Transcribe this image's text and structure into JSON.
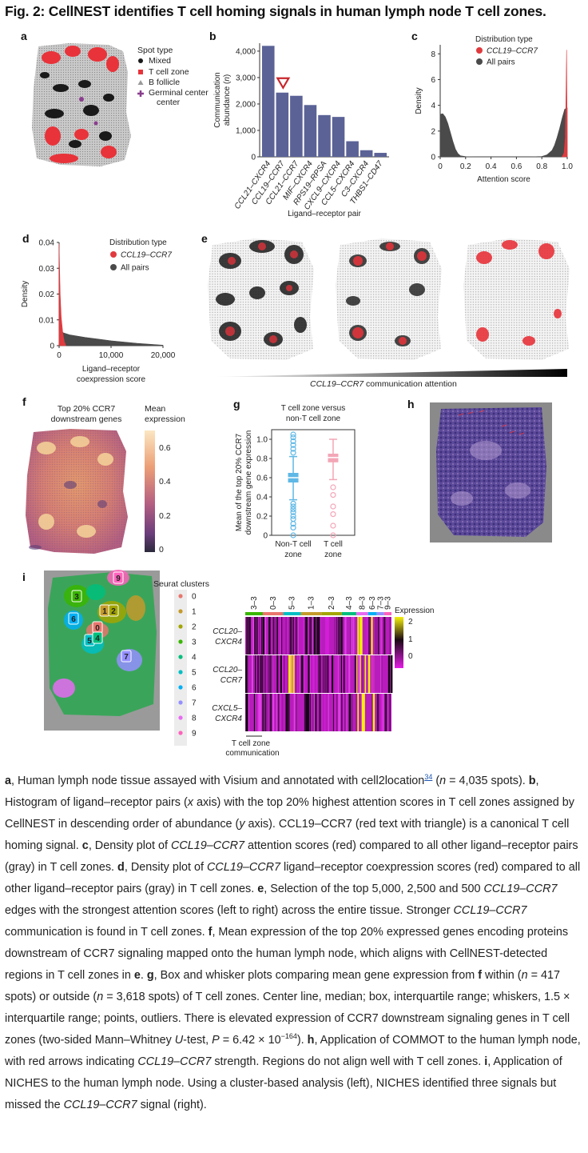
{
  "figure": {
    "title": "Fig. 2: CellNEST identifies T cell homing signals in human lymph node T cell zones."
  },
  "panels": {
    "a": {
      "label": "a",
      "legend_title": "Spot type",
      "legend": [
        "Mixed",
        "T cell zone",
        "B follicle",
        "Germinal center"
      ],
      "colors": {
        "mixed": "#1a1a1a",
        "tcell": "#e8333a",
        "bfollicle": "#9a9a9a",
        "germinal": "#8a3e8e"
      }
    },
    "b": {
      "label": "b"
    },
    "c": {
      "label": "c"
    },
    "d": {
      "label": "d"
    },
    "e": {
      "label": "e",
      "gradient_label_italic": "CCL19–CCR7",
      "gradient_label_rest": " communication attention"
    },
    "f": {
      "label": "f",
      "title_line1": "Top 20% CCR7",
      "title_line2": "downstream genes",
      "colorbar_title_line1": "Mean",
      "colorbar_title_line2": "expression",
      "colorbar_ticks": [
        "0.6",
        "0.4",
        "0.2",
        "0"
      ]
    },
    "g": {
      "label": "g"
    },
    "h": {
      "label": "h"
    },
    "i": {
      "label": "i",
      "clusters_title": "Seurat clusters",
      "clusters": [
        "0",
        "1",
        "2",
        "3",
        "4",
        "5",
        "6",
        "7",
        "8",
        "9"
      ],
      "cluster_colors": [
        "#e8766d",
        "#c49a2b",
        "#a3a500",
        "#39b600",
        "#00bf7d",
        "#00bfc4",
        "#00b0f6",
        "#9590ff",
        "#e76bf3",
        "#ff62bc"
      ],
      "map_labels": [
        {
          "id": "9",
          "x": 148,
          "y": 722
        },
        {
          "id": "3",
          "x": 96,
          "y": 745
        },
        {
          "id": "1",
          "x": 131,
          "y": 763
        },
        {
          "id": "2",
          "x": 142,
          "y": 763
        },
        {
          "id": "6",
          "x": 92,
          "y": 773
        },
        {
          "id": "0",
          "x": 122,
          "y": 784
        },
        {
          "id": "5",
          "x": 112,
          "y": 800
        },
        {
          "id": "4",
          "x": 122,
          "y": 797
        },
        {
          "id": "7",
          "x": 158,
          "y": 820
        }
      ],
      "heatmap_top_labels": [
        "3–3",
        "0–3",
        "5–3",
        "1–3",
        "2–3",
        "4–3",
        "8–3",
        "6–3",
        "7–3",
        "9–3"
      ],
      "heatmap_rows": [
        {
          "line1": "CCL20–",
          "line2": "CXCR4"
        },
        {
          "line1": "CCL20–",
          "line2": "CCR7"
        },
        {
          "line1": "CXCL5–",
          "line2": "CXCR4"
        }
      ],
      "expression_title": "Expression",
      "expression_ticks": [
        "2",
        "1",
        "0"
      ],
      "bottom_line1": "T cell zone",
      "bottom_line2": "communication"
    }
  },
  "chart_data": [
    {
      "panel": "b",
      "type": "bar",
      "categories": [
        "CCL21–CXCR4",
        "CCL19–CCR7",
        "CCL21–CCR7",
        "MIF–CXCR4",
        "RPS19–RPSA",
        "CXCL9–CXCR4",
        "CCL5–CXCR4",
        "C3–CXCR4",
        "THBS1–CD47"
      ],
      "values": [
        4200,
        2430,
        2310,
        1960,
        1580,
        1510,
        590,
        250,
        150
      ],
      "highlight": "CCL19–CCR7",
      "highlight_color": "#c8262b",
      "bar_color": "#5a6296",
      "ylabel_line1": "Communication",
      "ylabel_line2_a": "abundance (",
      "ylabel_line2_b": "n",
      "ylabel_line2_c": ")",
      "xlabel": "Ligand–receptor pair",
      "ylim": [
        0,
        4300
      ],
      "yticks": [
        "0",
        "1,000",
        "2,000",
        "3,000",
        "4,000"
      ],
      "ytick_values": [
        0,
        1000,
        2000,
        3000,
        4000
      ]
    },
    {
      "panel": "c",
      "type": "area",
      "xlabel": "Attention score",
      "ylabel": "Density",
      "xlim": [
        0,
        1
      ],
      "ylim": [
        0,
        8.7
      ],
      "xticks": [
        "0",
        "0.2",
        "0.4",
        "0.6",
        "0.8",
        "1.0"
      ],
      "xtick_values": [
        0,
        0.2,
        0.4,
        0.6,
        0.8,
        1.0
      ],
      "yticks": [
        "0",
        "2",
        "4",
        "6",
        "8"
      ],
      "ytick_values": [
        0,
        2,
        4,
        6,
        8
      ],
      "legend_title": "Distribution type",
      "legend": [
        "CCL19–CCR7",
        "All pairs"
      ],
      "series": [
        {
          "name": "All pairs",
          "color": "#4a4a4a",
          "x": [
            0,
            0.02,
            0.04,
            0.06,
            0.08,
            0.1,
            0.12,
            0.14,
            0.16,
            0.2,
            0.3,
            0.5,
            0.7,
            0.8,
            0.84,
            0.88,
            0.9,
            0.92,
            0.94,
            0.96,
            0.98,
            1.0
          ],
          "y": [
            3.3,
            3.35,
            3.1,
            2.6,
            1.9,
            1.2,
            0.6,
            0.25,
            0.08,
            0.02,
            0,
            0,
            0,
            0.03,
            0.15,
            0.5,
            0.9,
            1.5,
            2.2,
            3.0,
            3.7,
            3.8
          ]
        },
        {
          "name": "CCL19–CCR7",
          "color": "#e03a3e",
          "x": [
            0.96,
            0.975,
            0.985,
            0.99,
            0.995,
            1.0
          ],
          "y": [
            0,
            0.3,
            1.5,
            4.5,
            8.3,
            0
          ]
        }
      ]
    },
    {
      "panel": "d",
      "type": "area",
      "xlabel_line1": "Ligand–receptor",
      "xlabel_line2": "coexpression score",
      "ylabel": "Density",
      "xlim": [
        0,
        20000
      ],
      "ylim": [
        0,
        0.04
      ],
      "xticks": [
        "0",
        "10,000",
        "20,000"
      ],
      "xtick_values": [
        0,
        10000,
        20000
      ],
      "yticks": [
        "0",
        "0.01",
        "0.02",
        "0.03",
        "0.04"
      ],
      "ytick_values": [
        0,
        0.01,
        0.02,
        0.03,
        0.04
      ],
      "legend_title": "Distribution type",
      "legend": [
        "CCL19–CCR7",
        "All pairs"
      ],
      "series": [
        {
          "name": "All pairs",
          "color": "#4a4a4a",
          "x": [
            0,
            300,
            800,
            2000,
            5000,
            10000,
            15000,
            20000
          ],
          "y": [
            0.0055,
            0.0058,
            0.005,
            0.0042,
            0.0032,
            0.0019,
            0.0009,
            0.0002
          ]
        },
        {
          "name": "CCL19–CCR7",
          "color": "#e03a3e",
          "x": [
            0,
            60,
            200,
            400,
            700,
            1000,
            1300
          ],
          "y": [
            0.0395,
            0.033,
            0.02,
            0.011,
            0.005,
            0.0015,
            0
          ]
        }
      ]
    },
    {
      "panel": "g",
      "type": "box",
      "title_line1": "T cell zone versus",
      "title_line2": "non-T cell zone",
      "ylabel_line1": "Mean of the top 20% CCR7",
      "ylabel_line2": "downstream gene expression",
      "categories_line1": [
        "Non-T cell",
        "T cell"
      ],
      "categories_line2": [
        "zone",
        "zone"
      ],
      "ylim": [
        0,
        1.1
      ],
      "yticks": [
        "0",
        "0.2",
        "0.4",
        "0.6",
        "0.8",
        "1.0"
      ],
      "ytick_values": [
        0,
        0.2,
        0.4,
        0.6,
        0.8,
        1.0
      ],
      "boxes": [
        {
          "name": "Non-T cell zone",
          "color": "#5fb8e6",
          "min": 0.37,
          "q1": 0.55,
          "median": 0.6,
          "q3": 0.65,
          "max": 0.82,
          "outliers": [
            0.0,
            0.08,
            0.12,
            0.17,
            0.2,
            0.24,
            0.27,
            0.3,
            0.33,
            0.86,
            0.9,
            0.94,
            0.98,
            1.02,
            1.05
          ]
        },
        {
          "name": "T cell zone",
          "color": "#f3a6b6",
          "min": 0.58,
          "q1": 0.76,
          "median": 0.81,
          "q3": 0.85,
          "max": 1.0,
          "outliers": [
            0.0,
            0.1,
            0.22,
            0.3,
            0.42,
            0.5
          ]
        }
      ]
    }
  ]
}
